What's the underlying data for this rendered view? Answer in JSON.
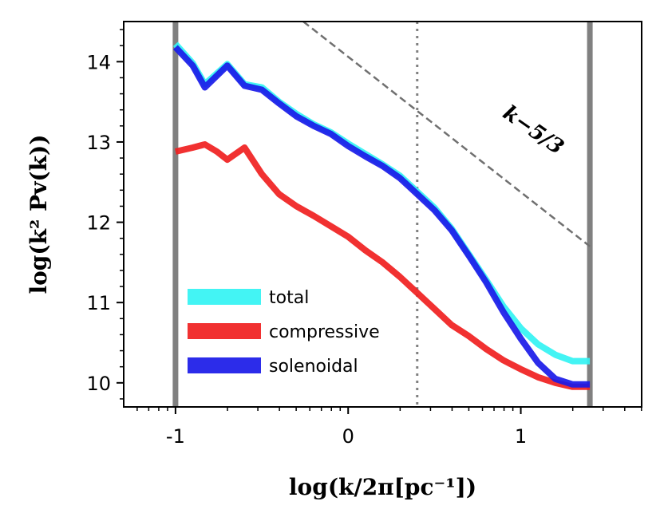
{
  "chart_data": {
    "type": "line",
    "title": "",
    "xlabel": "log(k/2π[pc⁻¹])",
    "ylabel": "log(k² Pv(k))",
    "xlim": [
      -1.3,
      1.7
    ],
    "ylim": [
      9.7,
      14.5
    ],
    "xticks": [
      -1,
      0,
      1
    ],
    "xtick_labels": [
      "-1",
      "0",
      "1"
    ],
    "yticks": [
      10,
      11,
      12,
      13,
      14
    ],
    "ytick_labels": [
      "10",
      "11",
      "12",
      "13",
      "14"
    ],
    "grid": false,
    "legend_position": "lower-left",
    "vertical_lines": [
      {
        "x": -1.0,
        "style": "solid",
        "color": "#808080"
      },
      {
        "x": 1.4,
        "style": "solid",
        "color": "#808080"
      },
      {
        "x": 0.4,
        "style": "dotted",
        "color": "#808080"
      }
    ],
    "reference_line": {
      "label": "k^{-5/3}",
      "label_text": "k−5/3",
      "x": [
        -0.26,
        1.4
      ],
      "y": [
        14.5,
        11.7
      ],
      "style": "dashed",
      "color": "#707070"
    },
    "series": [
      {
        "name": "total",
        "color": "#33f3f3",
        "x": [
          -1.0,
          -0.9,
          -0.83,
          -0.7,
          -0.6,
          -0.5,
          -0.4,
          -0.3,
          -0.2,
          -0.1,
          0.0,
          0.1,
          0.2,
          0.3,
          0.4,
          0.5,
          0.6,
          0.7,
          0.8,
          0.9,
          1.0,
          1.1,
          1.2,
          1.3,
          1.4
        ],
        "values": [
          14.22,
          13.98,
          13.72,
          13.97,
          13.72,
          13.68,
          13.5,
          13.35,
          13.22,
          13.12,
          12.98,
          12.85,
          12.72,
          12.58,
          12.38,
          12.18,
          11.92,
          11.6,
          11.28,
          10.95,
          10.68,
          10.48,
          10.35,
          10.27,
          10.27
        ]
      },
      {
        "name": "compressive",
        "color": "#f02020",
        "x": [
          -1.0,
          -0.9,
          -0.83,
          -0.76,
          -0.7,
          -0.6,
          -0.5,
          -0.4,
          -0.3,
          -0.2,
          -0.1,
          0.0,
          0.1,
          0.2,
          0.3,
          0.4,
          0.5,
          0.6,
          0.7,
          0.8,
          0.9,
          1.0,
          1.1,
          1.2,
          1.3,
          1.4
        ],
        "values": [
          12.88,
          12.93,
          12.97,
          12.88,
          12.78,
          12.93,
          12.6,
          12.35,
          12.2,
          12.08,
          11.95,
          11.82,
          11.65,
          11.5,
          11.32,
          11.12,
          10.92,
          10.72,
          10.58,
          10.42,
          10.28,
          10.17,
          10.07,
          10.0,
          9.95,
          9.95
        ]
      },
      {
        "name": "solenoidal",
        "color": "#1a1ae8",
        "x": [
          -1.0,
          -0.9,
          -0.83,
          -0.7,
          -0.6,
          -0.5,
          -0.4,
          -0.3,
          -0.2,
          -0.1,
          0.0,
          0.1,
          0.2,
          0.3,
          0.4,
          0.5,
          0.6,
          0.7,
          0.8,
          0.9,
          1.0,
          1.1,
          1.2,
          1.3,
          1.4
        ],
        "values": [
          14.18,
          13.95,
          13.68,
          13.95,
          13.7,
          13.65,
          13.48,
          13.32,
          13.2,
          13.1,
          12.95,
          12.82,
          12.7,
          12.55,
          12.35,
          12.15,
          11.9,
          11.58,
          11.25,
          10.88,
          10.55,
          10.25,
          10.05,
          9.98,
          9.98
        ]
      }
    ]
  }
}
